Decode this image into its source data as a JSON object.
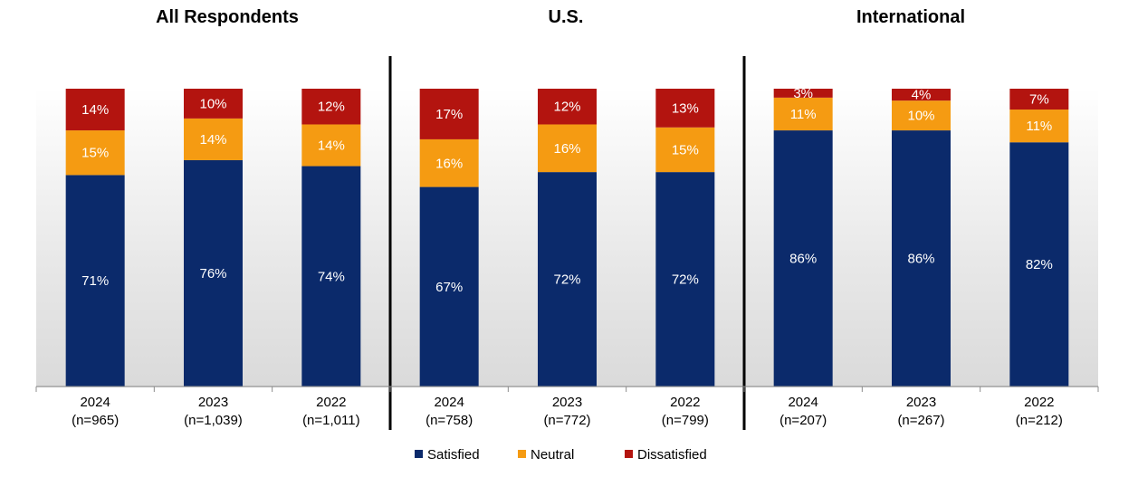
{
  "chart_data": {
    "type": "bar",
    "stacked": true,
    "colors": {
      "Satisfied": "#0b2a6b",
      "Neutral": "#f59b12",
      "Dissatisfied": "#b3140f"
    },
    "legend": {
      "placement": "bottom",
      "entries": [
        "Satisfied",
        "Neutral",
        "Dissatisfied"
      ]
    },
    "ylim": [
      0,
      100
    ],
    "groups": [
      {
        "title": "All Respondents",
        "bars": [
          {
            "year": "2024",
            "n": "(n=965)",
            "values": {
              "Satisfied": 71,
              "Neutral": 15,
              "Dissatisfied": 14
            },
            "labels": {
              "Satisfied": "71%",
              "Neutral": "15%",
              "Dissatisfied": "14%"
            }
          },
          {
            "year": "2023",
            "n": "(n=1,039)",
            "values": {
              "Satisfied": 76,
              "Neutral": 14,
              "Dissatisfied": 10
            },
            "labels": {
              "Satisfied": "76%",
              "Neutral": "14%",
              "Dissatisfied": "10%"
            }
          },
          {
            "year": "2022",
            "n": "(n=1,011)",
            "values": {
              "Satisfied": 74,
              "Neutral": 14,
              "Dissatisfied": 12
            },
            "labels": {
              "Satisfied": "74%",
              "Neutral": "14%",
              "Dissatisfied": "12%"
            }
          }
        ]
      },
      {
        "title": "U.S.",
        "bars": [
          {
            "year": "2024",
            "n": "(n=758)",
            "values": {
              "Satisfied": 67,
              "Neutral": 16,
              "Dissatisfied": 17
            },
            "labels": {
              "Satisfied": "67%",
              "Neutral": "16%",
              "Dissatisfied": "17%"
            }
          },
          {
            "year": "2023",
            "n": "(n=772)",
            "values": {
              "Satisfied": 72,
              "Neutral": 16,
              "Dissatisfied": 12
            },
            "labels": {
              "Satisfied": "72%",
              "Neutral": "16%",
              "Dissatisfied": "12%"
            }
          },
          {
            "year": "2022",
            "n": "(n=799)",
            "values": {
              "Satisfied": 72,
              "Neutral": 15,
              "Dissatisfied": 13
            },
            "labels": {
              "Satisfied": "72%",
              "Neutral": "15%",
              "Dissatisfied": "13%"
            }
          }
        ]
      },
      {
        "title": "International",
        "bars": [
          {
            "year": "2024",
            "n": "(n=207)",
            "values": {
              "Satisfied": 86,
              "Neutral": 11,
              "Dissatisfied": 3
            },
            "labels": {
              "Satisfied": "86%",
              "Neutral": "11%",
              "Dissatisfied": "3%"
            }
          },
          {
            "year": "2023",
            "n": "(n=267)",
            "values": {
              "Satisfied": 86,
              "Neutral": 10,
              "Dissatisfied": 4
            },
            "labels": {
              "Satisfied": "86%",
              "Neutral": "10%",
              "Dissatisfied": "4%"
            }
          },
          {
            "year": "2022",
            "n": "(n=212)",
            "values": {
              "Satisfied": 82,
              "Neutral": 11,
              "Dissatisfied": 7
            },
            "labels": {
              "Satisfied": "82%",
              "Neutral": "11%",
              "Dissatisfied": "7%"
            }
          }
        ]
      }
    ]
  }
}
